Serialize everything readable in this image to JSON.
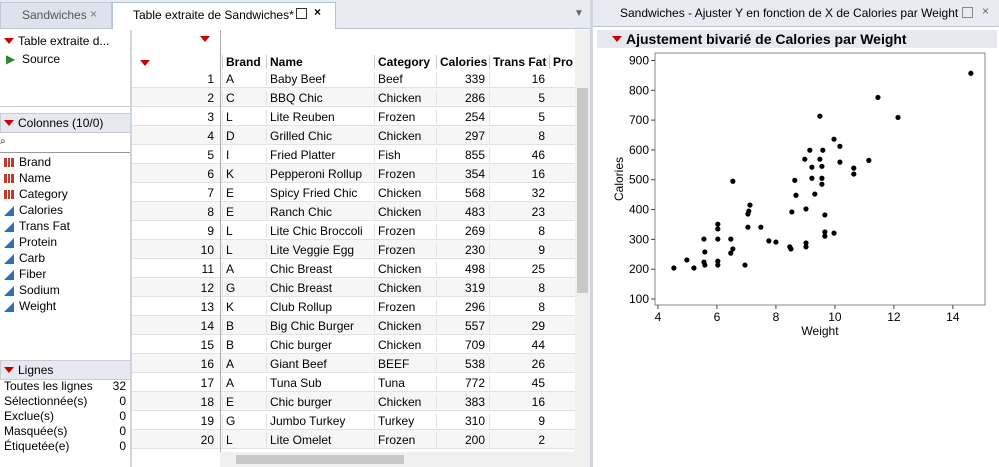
{
  "tabs": [
    "Sandwiches",
    "Table extraite de Sandwiches*"
  ],
  "window_title": "Sandwiches - Ajuster Y en fonction de X de Calories par Weight",
  "source_panel": {
    "title": "Table extraite d...",
    "items": [
      "Source"
    ]
  },
  "columns_panel": {
    "title": "Colonnes (10/0)",
    "columns": [
      {
        "name": "Brand",
        "kind": "nominal"
      },
      {
        "name": "Name",
        "kind": "nominal"
      },
      {
        "name": "Category",
        "kind": "nominal"
      },
      {
        "name": "Calories",
        "kind": "continuous"
      },
      {
        "name": "Trans Fat",
        "kind": "continuous"
      },
      {
        "name": "Protein",
        "kind": "continuous"
      },
      {
        "name": "Carb",
        "kind": "continuous"
      },
      {
        "name": "Fiber",
        "kind": "continuous"
      },
      {
        "name": "Sodium",
        "kind": "continuous"
      },
      {
        "name": "Weight",
        "kind": "continuous"
      }
    ]
  },
  "rows_panel": {
    "title": "Lignes",
    "rows": [
      [
        "Toutes les lignes",
        32
      ],
      [
        "Sélectionnée(s)",
        0
      ],
      [
        "Exclue(s)",
        0
      ],
      [
        "Masquée(s)",
        0
      ],
      [
        "Étiquetée(e)",
        0
      ]
    ]
  },
  "table": {
    "headers": [
      "Brand",
      "Name",
      "Category",
      "Calories",
      "Trans Fat",
      "Pro"
    ],
    "rows": [
      [
        1,
        "A",
        "Baby Beef",
        "Beef",
        339,
        16
      ],
      [
        2,
        "C",
        "BBQ Chic",
        "Chicken",
        286,
        5
      ],
      [
        3,
        "L",
        "Lite Reuben",
        "Frozen",
        254,
        5
      ],
      [
        4,
        "D",
        "Grilled Chic",
        "Chicken",
        297,
        8
      ],
      [
        5,
        "I",
        "Fried Platter",
        "Fish",
        855,
        46
      ],
      [
        6,
        "K",
        "Pepperoni Rollup",
        "Frozen",
        354,
        16
      ],
      [
        7,
        "E",
        "Spicy Fried Chic",
        "Chicken",
        568,
        32
      ],
      [
        8,
        "E",
        "Ranch Chic",
        "Chicken",
        483,
        23
      ],
      [
        9,
        "L",
        "Lite Chic Broccoli",
        "Frozen",
        269,
        8
      ],
      [
        10,
        "L",
        "Lite Veggie Egg",
        "Frozen",
        230,
        9
      ],
      [
        11,
        "A",
        "Chic Breast",
        "Chicken",
        498,
        25
      ],
      [
        12,
        "G",
        "Chic Breast",
        "Chicken",
        319,
        8
      ],
      [
        13,
        "K",
        "Club Rollup",
        "Frozen",
        296,
        8
      ],
      [
        14,
        "B",
        "Big Chic Burger",
        "Chicken",
        557,
        29
      ],
      [
        15,
        "B",
        "Chic burger",
        "Chicken",
        709,
        44
      ],
      [
        16,
        "A",
        "Giant Beef",
        "BEEF",
        538,
        26
      ],
      [
        17,
        "A",
        "Tuna Sub",
        "Tuna",
        772,
        45
      ],
      [
        18,
        "E",
        "Chic burger",
        "Chicken",
        383,
        16
      ],
      [
        19,
        "G",
        "Jumbo Turkey",
        "Turkey",
        310,
        9
      ],
      [
        20,
        "L",
        "Lite Omelet",
        "Frozen",
        200,
        2
      ]
    ]
  },
  "report_title": "Ajustement bivarié de Calories par Weight",
  "chart_data": {
    "type": "scatter",
    "xlabel": "Weight",
    "ylabel": "Calories",
    "color": "#000000",
    "x": [
      14.61,
      11.46,
      12.14,
      9.49,
      9.97,
      10.17,
      9.15,
      9.59,
      8.98,
      9.49,
      10.17,
      11.15,
      9.22,
      9.56,
      10.64,
      10.64,
      8.64,
      9.22,
      9.56,
      6.54,
      9.56,
      8.68,
      9.32,
      7.12,
      7.08,
      7.05,
      9.02,
      8.54,
      9.66,
      6.03,
      6.03,
      7.05,
      7.49,
      9.66,
      9.66,
      9.97,
      5.56,
      6.03,
      6.47,
      7.76,
      8.0,
      9.02,
      9.02,
      8.47,
      8.51,
      6.54,
      5.59,
      6.47,
      4.98,
      5.56,
      6.03,
      5.59,
      6.03,
      6.95,
      4.54,
      5.22
    ],
    "values": [
      857,
      776,
      709,
      713,
      636,
      612,
      599,
      599,
      569,
      569,
      559,
      565,
      542,
      545,
      539,
      519,
      498,
      505,
      505,
      495,
      485,
      448,
      452,
      415,
      395,
      385,
      402,
      392,
      382,
      351,
      335,
      341,
      341,
      325,
      311,
      321,
      301,
      301,
      301,
      295,
      291,
      288,
      275,
      275,
      268,
      268,
      258,
      254,
      231,
      224,
      227,
      214,
      214,
      214,
      204,
      204
    ],
    "xlim": [
      3.9,
      15.09
    ],
    "ylim": [
      80,
      925
    ],
    "xticks": [
      4,
      6,
      8,
      10,
      12,
      14
    ],
    "yticks": [
      100,
      200,
      300,
      400,
      500,
      600,
      700,
      800,
      900
    ]
  }
}
